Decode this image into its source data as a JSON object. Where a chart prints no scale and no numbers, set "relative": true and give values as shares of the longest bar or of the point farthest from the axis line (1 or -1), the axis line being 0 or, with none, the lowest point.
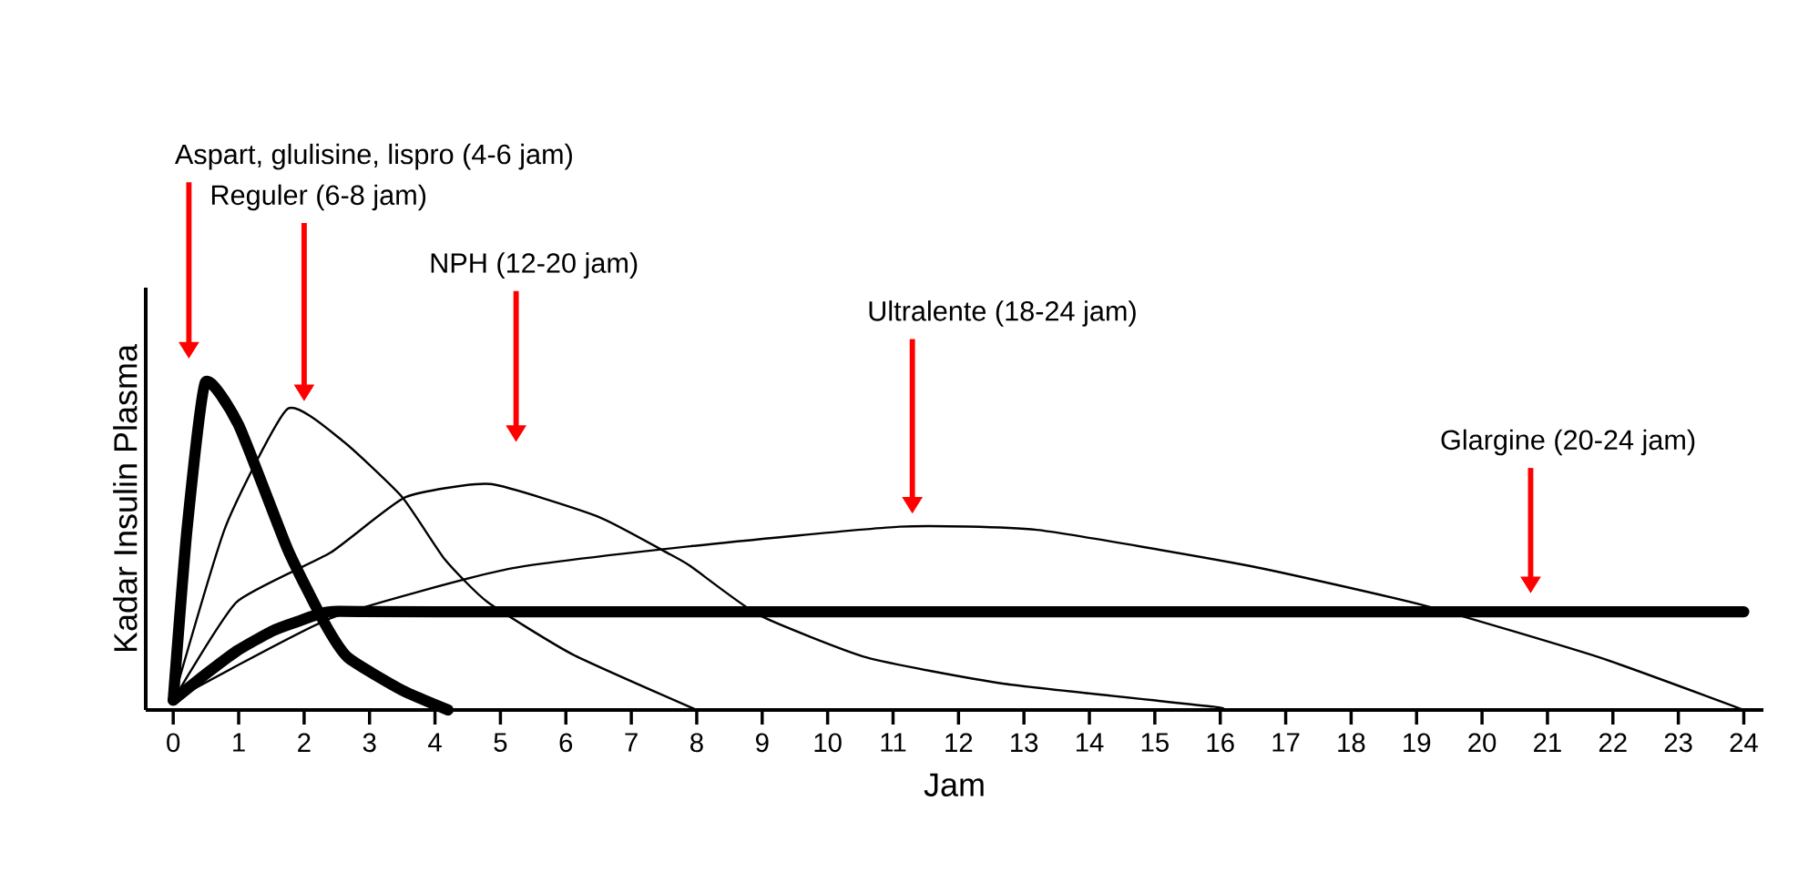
{
  "chart_data": {
    "type": "line",
    "relative": true,
    "xlabel": "Jam",
    "ylabel": "Kadar Insulin Plasma",
    "xlim": [
      -0.42,
      24.3
    ],
    "xticks": [
      0,
      1,
      2,
      3,
      4,
      5,
      6,
      7,
      8,
      9,
      10,
      11,
      12,
      13,
      14,
      15,
      16,
      17,
      18,
      19,
      20,
      21,
      22,
      23,
      24
    ],
    "tick_labels": "x",
    "grid": false,
    "marker": "none",
    "line_style": "solid",
    "series": [
      {
        "color": "#000000",
        "x": [
          0,
          0.21,
          0.49,
          1.0,
          1.75,
          2.3,
          2.67,
          3.5,
          4.2
        ],
        "values": [
          0.03,
          0.55,
          1.0,
          0.87,
          0.49,
          0.27,
          0.16,
          0.06,
          0
        ]
      },
      {
        "color": "#000000",
        "x": [
          0,
          0.8,
          1.75,
          2.6,
          3.5,
          4.15,
          4.8,
          6.1,
          8
        ],
        "values": [
          0.03,
          0.56,
          0.92,
          0.82,
          0.65,
          0.46,
          0.33,
          0.17,
          0
        ]
      },
      {
        "color": "#000000",
        "x": [
          0,
          0.97,
          2.4,
          3.55,
          4.85,
          6.5,
          7.55,
          7.9,
          8.95,
          10.6,
          12.7,
          15.9,
          16
        ],
        "values": [
          0.03,
          0.33,
          0.48,
          0.65,
          0.69,
          0.59,
          0.48,
          0.44,
          0.29,
          0.16,
          0.08,
          0.01,
          0
        ]
      },
      {
        "color": "#000000",
        "x": [
          0,
          2.4,
          5.1,
          7.9,
          11.1,
          13.2,
          16.45,
          19.1,
          21.8,
          24
        ],
        "values": [
          0.03,
          0.28,
          0.43,
          0.5,
          0.56,
          0.55,
          0.44,
          0.32,
          0.16,
          0
        ]
      },
      {
        "color": "#000000",
        "x": [
          0,
          0.5,
          0.97,
          1.5,
          1.9,
          2.4,
          4,
          24
        ],
        "values": [
          0.03,
          0.11,
          0.18,
          0.24,
          0.27,
          0.3,
          0.3,
          0.3
        ]
      }
    ],
    "annotations": [
      "Aspart, glulisine, lispro (4-6 jam)",
      "Reguler (6-8 jam)",
      "NPH (12-20 jam)",
      "Ultralente (18-24 jam)",
      "Glargine (20-24 jam)"
    ]
  }
}
